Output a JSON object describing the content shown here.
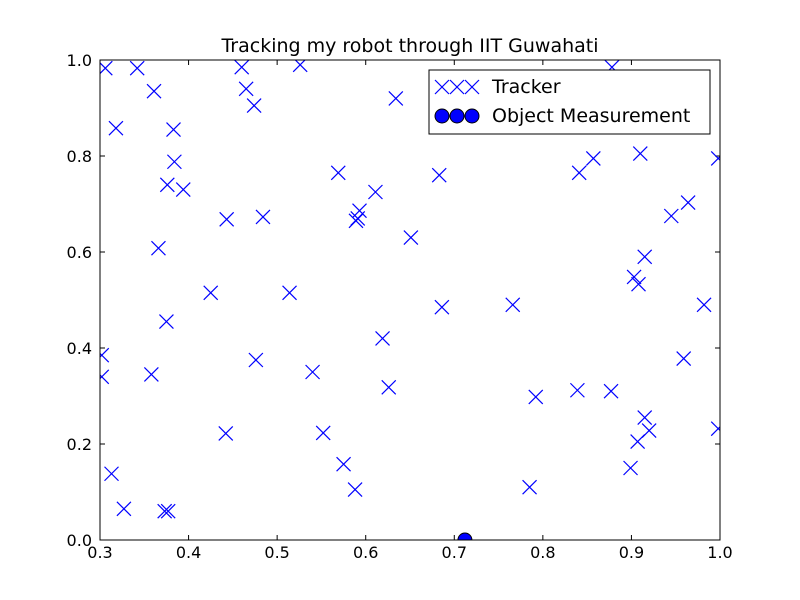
{
  "chart_data": {
    "type": "scatter",
    "title": "Tracking my robot through IIT Guwahati",
    "xlabel": "",
    "ylabel": "",
    "xlim": [
      0.3,
      1.0
    ],
    "ylim": [
      0.0,
      1.0
    ],
    "xticks": [
      "0.3",
      "0.4",
      "0.5",
      "0.6",
      "0.7",
      "0.8",
      "0.9",
      "1.0"
    ],
    "yticks": [
      "0.0",
      "0.2",
      "0.4",
      "0.6",
      "0.8",
      "1.0"
    ],
    "grid": false,
    "legend_placement": "top-right",
    "series": [
      {
        "name": "Tracker",
        "marker": "x",
        "color": "#0000ff",
        "points": [
          [
            0.306,
            0.983
          ],
          [
            0.342,
            0.983
          ],
          [
            0.318,
            0.858
          ],
          [
            0.361,
            0.935
          ],
          [
            0.383,
            0.855
          ],
          [
            0.384,
            0.788
          ],
          [
            0.376,
            0.74
          ],
          [
            0.394,
            0.73
          ],
          [
            0.465,
            0.94
          ],
          [
            0.474,
            0.905
          ],
          [
            0.46,
            0.985
          ],
          [
            0.526,
            0.99
          ],
          [
            0.634,
            0.92
          ],
          [
            0.878,
            0.985
          ],
          [
            0.443,
            0.668
          ],
          [
            0.484,
            0.673
          ],
          [
            0.366,
            0.608
          ],
          [
            0.425,
            0.515
          ],
          [
            0.375,
            0.455
          ],
          [
            0.514,
            0.515
          ],
          [
            0.569,
            0.765
          ],
          [
            0.611,
            0.725
          ],
          [
            0.589,
            0.665
          ],
          [
            0.591,
            0.67
          ],
          [
            0.593,
            0.686
          ],
          [
            0.651,
            0.63
          ],
          [
            0.683,
            0.76
          ],
          [
            0.686,
            0.485
          ],
          [
            0.766,
            0.49
          ],
          [
            0.619,
            0.42
          ],
          [
            0.476,
            0.375
          ],
          [
            0.54,
            0.35
          ],
          [
            0.358,
            0.345
          ],
          [
            0.302,
            0.385
          ],
          [
            0.302,
            0.34
          ],
          [
            0.626,
            0.318
          ],
          [
            0.442,
            0.222
          ],
          [
            0.552,
            0.223
          ],
          [
            0.575,
            0.158
          ],
          [
            0.588,
            0.105
          ],
          [
            0.313,
            0.138
          ],
          [
            0.327,
            0.065
          ],
          [
            0.373,
            0.06
          ],
          [
            0.377,
            0.06
          ],
          [
            0.785,
            0.11
          ],
          [
            0.792,
            0.298
          ],
          [
            0.839,
            0.312
          ],
          [
            0.877,
            0.31
          ],
          [
            0.841,
            0.765
          ],
          [
            0.857,
            0.795
          ],
          [
            0.91,
            0.805
          ],
          [
            0.903,
            0.548
          ],
          [
            0.908,
            0.533
          ],
          [
            0.915,
            0.59
          ],
          [
            0.945,
            0.675
          ],
          [
            0.964,
            0.703
          ],
          [
            0.982,
            0.49
          ],
          [
            0.959,
            0.378
          ],
          [
            0.998,
            0.795
          ],
          [
            0.998,
            0.232
          ],
          [
            0.915,
            0.255
          ],
          [
            0.92,
            0.228
          ],
          [
            0.907,
            0.205
          ],
          [
            0.899,
            0.15
          ]
        ]
      },
      {
        "name": "Object Measurement",
        "marker": "o",
        "color": "#0000ff",
        "points": [
          [
            0.712,
            0.0
          ]
        ]
      }
    ]
  }
}
